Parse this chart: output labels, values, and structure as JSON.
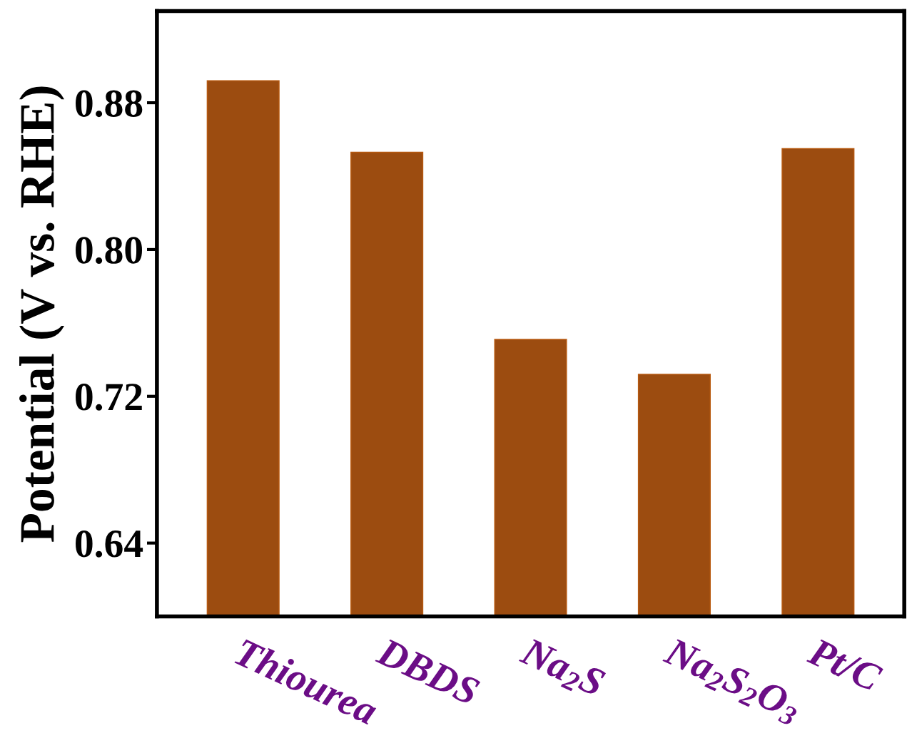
{
  "chart_data": {
    "type": "bar",
    "ylabel": "Potential (V vs. RHE)",
    "categories": [
      "Thiourea",
      "DBDS",
      "Na$_{2}$S",
      "Na$_{2}$S$_{2}$O$_{3}$",
      "Pt/C"
    ],
    "values": [
      0.892,
      0.853,
      0.751,
      0.732,
      0.855
    ],
    "color": "#9c4c10",
    "ylim": [
      0.6,
      0.93
    ],
    "yticks": [
      0.64,
      0.72,
      {
        "value": 0.8,
        "label": "0.80"
      },
      0.88
    ],
    "grid": false
  }
}
